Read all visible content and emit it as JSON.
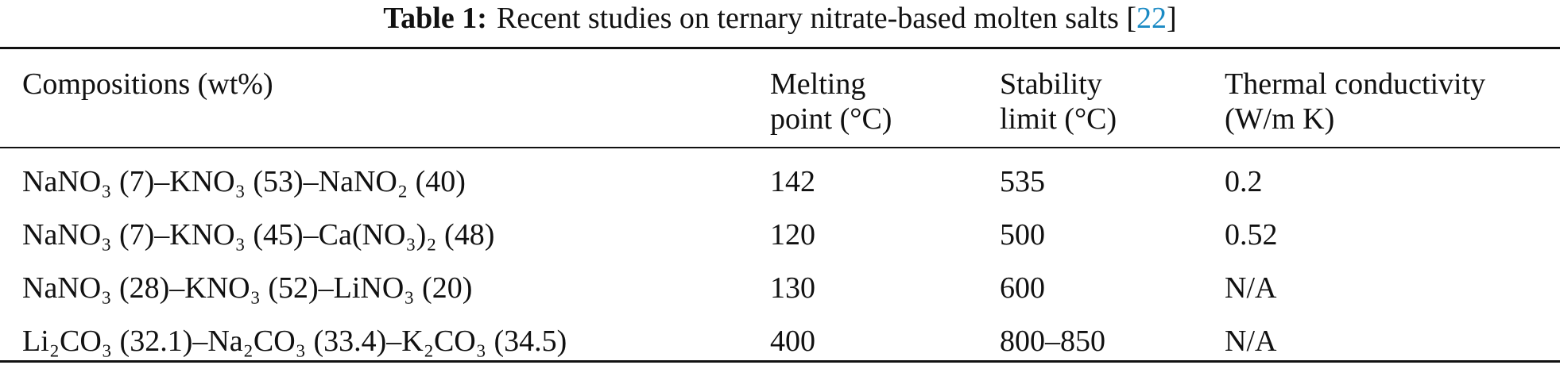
{
  "caption": {
    "label": "Table 1:",
    "text": "Recent studies on ternary nitrate-based molten salts",
    "ref_open": "[",
    "ref": "22",
    "ref_close": "]"
  },
  "table": {
    "header": [
      "Compositions (wt%)",
      "Melting point (°C)",
      "Stability limit (°C)",
      "Thermal conductivity (W/m K)"
    ],
    "rows": [
      [
        "NaNO₃ (7)–KNO₃ (53)–NaNO₂ (40)",
        "142",
        "535",
        "0.2"
      ],
      [
        "NaNO₃ (7)–KNO₃ (45)–Ca(NO₃)₂ (48)",
        "120",
        "500",
        "0.52"
      ],
      [
        "NaNO₃ (28)–KNO₃ (52)–LiNO₃ (20)",
        "130",
        "600",
        "N/A"
      ],
      [
        "Li₂CO₃ (32.1)–Na₂CO₃ (33.4)–K₂CO₃ (34.5)",
        "400",
        "800–850",
        "N/A"
      ]
    ]
  }
}
